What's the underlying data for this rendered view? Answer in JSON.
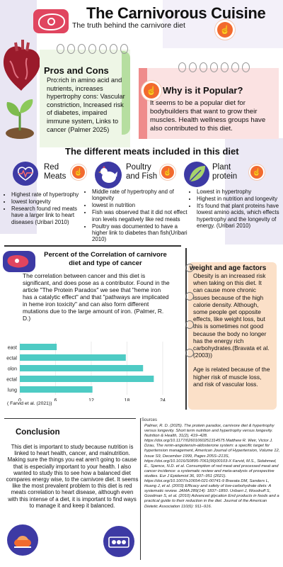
{
  "header": {
    "title": "The Carnivorous Cuisine",
    "subtitle": "The truth behind the carnivore diet"
  },
  "pros_cons": {
    "heading": "Pros and Cons",
    "body": "Pro:rich in amino acid and nutrients, increases hypertrophy cons: Vascular constriction, Increased risk of diabetes, impaired immune system, Links to cancer (Palmer 2025)"
  },
  "why_popular": {
    "heading": "Why is it Popular?",
    "body": "It seems to be a popular diet for bodybuilders that want to grow their muscles. Health wellness groups have also contributed to this diet."
  },
  "meats_section": {
    "title": "The different meats included in this diet",
    "columns": [
      {
        "heading_line1": "Red",
        "heading_line2": "Meats",
        "points": [
          "Highest rate of hypertrophy",
          "lowest longevity",
          "Research found red meats have a larger link to heart diseases (Uribari 2010)"
        ]
      },
      {
        "heading_line1": "Poultry",
        "heading_line2": "and Fish",
        "points": [
          "Middle rate of hypertrophy and of longevity",
          "lowest in nutrition",
          "Fish was observed that it did not effect iron levels negatively like red meats",
          "Poultry was documented to have a higher link to diabetes than fish(Uribari 2010)"
        ]
      },
      {
        "heading_line1": "Plant",
        "heading_line2": "protein",
        "points": [
          "Lowest in hypertrophy",
          "Highest in nutrition and longevity",
          "It's found that plant proteins have lowest amino acids, which effects hypertrophy and the longevity of energy. (Uribari 2010)"
        ]
      }
    ]
  },
  "correlation": {
    "title": "Percent of the Correlation of carnivore diet and type of cancer",
    "body": "The correlation between cancer and this diet is significant, and does pose as a contributor. Found in the article \"The Protein Paradox\" we see that \"heme iron has a catalytic effect\" and that \"pathways are implicated in heme iron toxicity\" and can also form different mutations due to the large amount of iron. (Palmer, R. D.)",
    "caption": "( Farvid et al. (2021))"
  },
  "chart_data": {
    "type": "bar",
    "orientation": "horizontal",
    "categories": [
      "east",
      "ectal",
      "olon",
      "ectal",
      "lung"
    ],
    "values": [
      6.2,
      17.8,
      20.7,
      22.5,
      12.2
    ],
    "xlim": [
      0,
      24
    ],
    "xticks": [
      0,
      6,
      12,
      18,
      24
    ],
    "bar_color": "#4ecbc4",
    "grid": true
  },
  "weight": {
    "heading": "weight and age factors",
    "body1": "Obesity is an increased risk when taking on this diet. It can cause more chronic issues because of the high calorie density. Although, some people get opposite effects, like weight loss, but this is sometimes not good because the body no longer has the energy rich carbohydrates.(Bravata et al. (2003))",
    "body2": "Age is related because of the higher risk of muscle loss, and  risk of vascular loss."
  },
  "conclusion": {
    "heading": "Conclusion",
    "body": "This diet is important to study because nutrition is linked to heart health, cancer, and malnutrition. Making sure the things you eat aren't going to cause that is especially important to your health. I also wanted to study this to see how a balanced diet compares energy wise, to the carnivore diet. It seems like the most prevalent problem to this diet is red meats correlation to heart disease, although even with this intense of a diet, it is important to find ways to manage it and keep it balanced."
  },
  "sources": {
    "label": "Sources",
    "body": "Palmer, R. D. (2025). The protein paradox, carnivore diet & hypertrophy versus longevity. Short term nutrition and hypertrophy versus longevity. Nutrition & Health, 31(2), 419–428. https://doi.org/10.1177/02601060251314575 Matthew R. Weir, Victor J. Dzau, The renin-angiotensin-aldosterone system: a specific target for hypertension management, American Journal of Hypertension, Volume 12, Issue S9, December 1999, Pages 205S–213S, https://doi.org/10.1016/S0895-7061(99)00103-X Farvid, M.S., Sidahmed, E., Spence, N.D. et al. Consumption of red meat and processed meat and cancer incidence: a systematic review and meta-analysis of prospective studies. Eur J Epidemiol 36, 937–951 (2021). https://doi.org/10.1007/s10654-021-00741-9 Bravata DM, Sanders L, Huang J, et al. (2003) Efficacy and safety of low-carbohydrate diets: A systematic review. JAMA 289(14): 1837–1850. Uribarri J, Woodruff S, Goodman S, et al. (2010) Advanced glycation End products in foods and a practical guide to their reduction in the diet. Journal of the American Dietetic Association 110(6): 911–916."
  },
  "colors": {
    "accent_orange": "#f26a2e",
    "indigo": "#3d3aa4",
    "bar": "#4ecbc4"
  },
  "icons": [
    "meat-icon",
    "heart-organ-icon",
    "seedling-icon",
    "heartbeat-icon",
    "chicken-icon",
    "leaf-icon",
    "steak-icon",
    "egg-carton-icon",
    "turkey-icon",
    "pointer-icon"
  ]
}
